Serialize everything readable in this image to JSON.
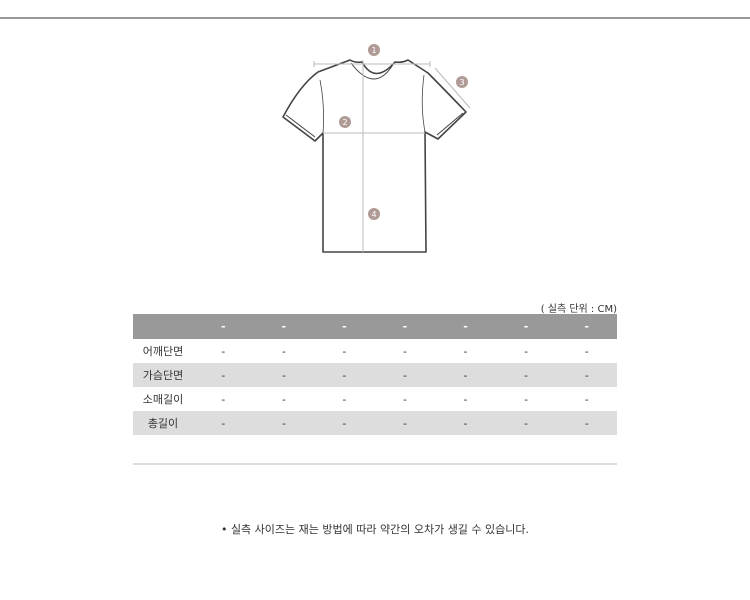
{
  "unit_label": "( 실측 단위 : CM)",
  "diagram_markers": [
    "1",
    "2",
    "3",
    "4"
  ],
  "table": {
    "header": [
      "",
      "-",
      "-",
      "-",
      "-",
      "-",
      "-",
      "-"
    ],
    "rows": [
      {
        "label": "어깨단면",
        "values": [
          "-",
          "-",
          "-",
          "-",
          "-",
          "-",
          "-"
        ]
      },
      {
        "label": "가슴단면",
        "values": [
          "-",
          "-",
          "-",
          "-",
          "-",
          "-",
          "-"
        ]
      },
      {
        "label": "소매길이",
        "values": [
          "-",
          "-",
          "-",
          "-",
          "-",
          "-",
          "-"
        ]
      },
      {
        "label": "총길이",
        "values": [
          "-",
          "-",
          "-",
          "-",
          "-",
          "-",
          "-"
        ]
      }
    ]
  },
  "note": "• 실측 사이즈는 재는 방법에 따라 약간의 오차가 생길 수 있습니다.",
  "colors": {
    "header_bg": "#999999",
    "stripe_bg": "#dddddd",
    "marker": "#b09a96"
  }
}
